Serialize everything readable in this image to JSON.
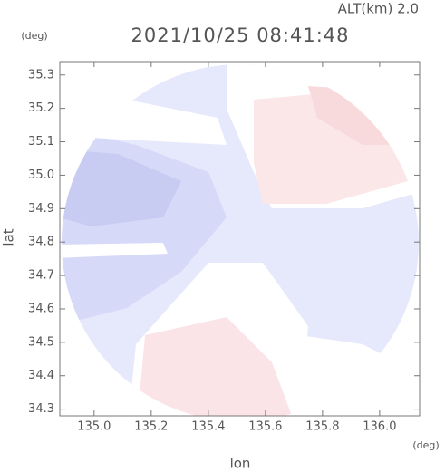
{
  "chart_data": {
    "type": "radar-map",
    "title": "2021/10/25 08:41:48",
    "altitude_label": "ALT(km) 2.0",
    "x_label": "lon",
    "y_label": "lat",
    "x_unit": "(deg)",
    "y_unit": "(deg)",
    "xlim": [
      134.88,
      136.14
    ],
    "ylim": [
      34.28,
      35.34
    ],
    "xticks": [
      {
        "value": 135,
        "label": "135.0"
      },
      135.2,
      135.4,
      135.6,
      135.8,
      {
        "value": 136,
        "label": "136.0"
      }
    ],
    "yticks": [
      34.3,
      34.4,
      34.5,
      34.6,
      34.7,
      34.8,
      34.9,
      {
        "value": 35,
        "label": "35.0"
      },
      35.1,
      35.2,
      35.3
    ]
  }
}
